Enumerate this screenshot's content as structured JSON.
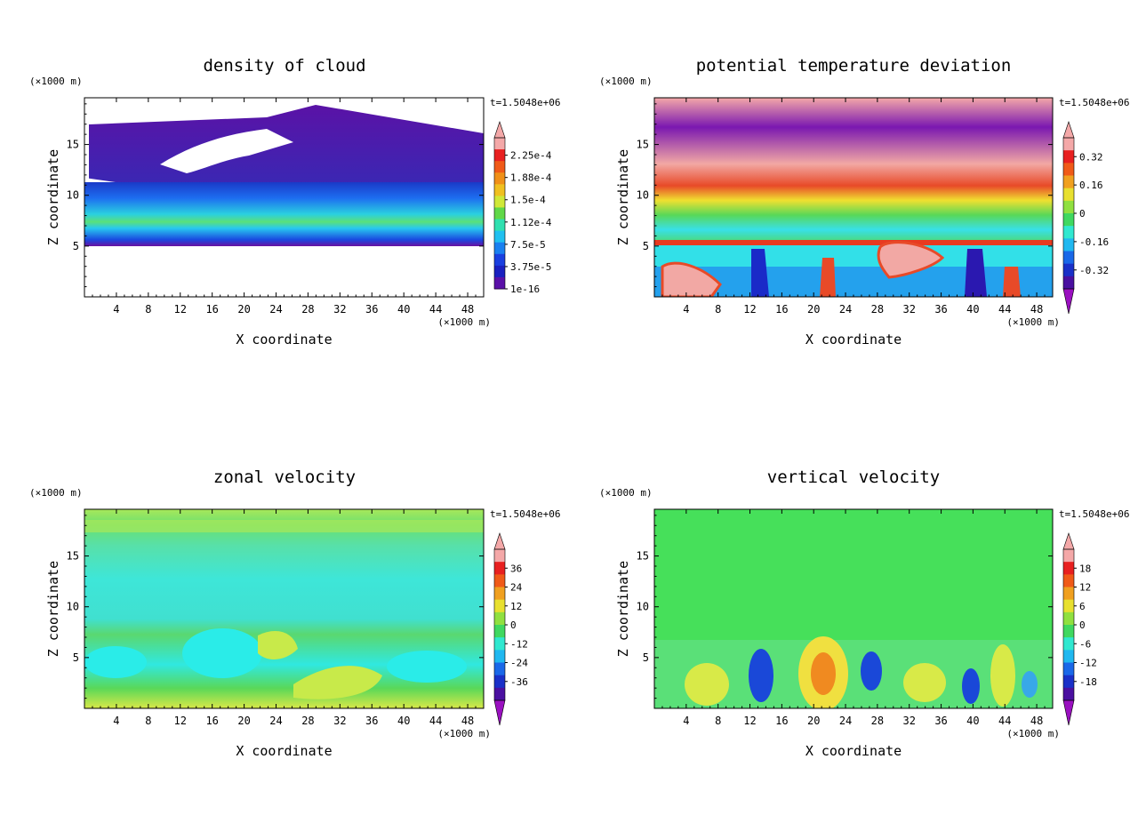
{
  "chart_data": [
    {
      "type": "heatmap",
      "title": "density of cloud",
      "xlabel": "X coordinate",
      "ylabel": "Z coordinate",
      "x_unit": "(×1000 m)",
      "y_unit": "(×1000 m)",
      "time_label": "t=1.5048e+06",
      "xlim": [
        0,
        50
      ],
      "ylim": [
        0,
        19.6
      ],
      "x_ticks": [
        "4",
        "8",
        "12",
        "16",
        "20",
        "24",
        "28",
        "32",
        "36",
        "40",
        "44",
        "48"
      ],
      "y_ticks": [
        "5",
        "10",
        "15"
      ],
      "colorbar_labels": [
        "1e-16",
        "3.75e-5",
        "7.5e-5",
        "1.12e-4",
        "1.5e-4",
        "1.88e-4",
        "2.25e-4"
      ],
      "colorbar_has_min_arrow": false
    },
    {
      "type": "heatmap",
      "title": "potential temperature deviation",
      "xlabel": "X coordinate",
      "ylabel": "Z coordinate",
      "x_unit": "(×1000 m)",
      "y_unit": "(×1000 m)",
      "time_label": "t=1.5048e+06",
      "xlim": [
        0,
        50
      ],
      "ylim": [
        0,
        19.6
      ],
      "x_ticks": [
        "4",
        "8",
        "12",
        "16",
        "20",
        "24",
        "28",
        "32",
        "36",
        "40",
        "44",
        "48"
      ],
      "y_ticks": [
        "5",
        "10",
        "15"
      ],
      "colorbar_labels": [
        "-0.32",
        "-0.16",
        "0",
        "0.16",
        "0.32"
      ],
      "colorbar_has_min_arrow": true
    },
    {
      "type": "heatmap",
      "title": "zonal velocity",
      "xlabel": "X coordinate",
      "ylabel": "Z coordinate",
      "x_unit": "(×1000 m)",
      "y_unit": "(×1000 m)",
      "time_label": "t=1.5048e+06",
      "xlim": [
        0,
        50
      ],
      "ylim": [
        0,
        19.6
      ],
      "x_ticks": [
        "4",
        "8",
        "12",
        "16",
        "20",
        "24",
        "28",
        "32",
        "36",
        "40",
        "44",
        "48"
      ],
      "y_ticks": [
        "5",
        "10",
        "15"
      ],
      "colorbar_labels": [
        "-36",
        "-24",
        "-12",
        "0",
        "12",
        "24",
        "36"
      ],
      "colorbar_has_min_arrow": true
    },
    {
      "type": "heatmap",
      "title": "vertical velocity",
      "xlabel": "X coordinate",
      "ylabel": "Z coordinate",
      "x_unit": "(×1000 m)",
      "y_unit": "(×1000 m)",
      "time_label": "t=1.5048e+06",
      "xlim": [
        0,
        50
      ],
      "ylim": [
        0,
        19.6
      ],
      "x_ticks": [
        "4",
        "8",
        "12",
        "16",
        "20",
        "24",
        "28",
        "32",
        "36",
        "40",
        "44",
        "48"
      ],
      "y_ticks": [
        "5",
        "10",
        "15"
      ],
      "colorbar_labels": [
        "-18",
        "-12",
        "-6",
        "0",
        "6",
        "12",
        "18"
      ],
      "colorbar_has_min_arrow": true
    }
  ]
}
